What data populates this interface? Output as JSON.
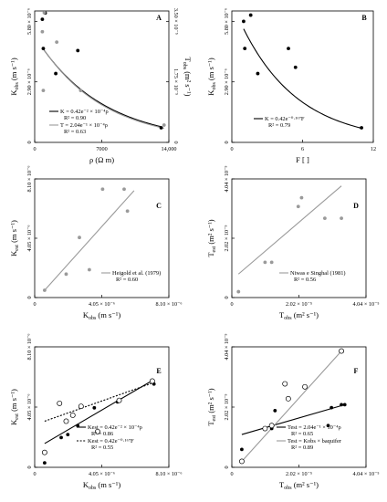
{
  "chart_data": [
    {
      "id": "A",
      "type": "scatter",
      "letter": "A",
      "xlabel": "ρ (Ω m)",
      "ylabel": "K_obs (m s⁻¹)",
      "y2label": "T_obs (m² s⁻¹)",
      "xlim": [
        0,
        14000
      ],
      "ylim": [
        0,
        6.3e-06
      ],
      "y2lim": [
        0,
        3.8e-05
      ],
      "xticks": [
        {
          "v": 0,
          "label": "0"
        },
        {
          "v": 7000,
          "label": "7000"
        },
        {
          "v": 14000,
          "label": "14,000"
        }
      ],
      "yticks": [
        {
          "v": 0,
          "label": "0"
        },
        {
          "v": 2.9e-06,
          "label": "2.90 × 10⁻⁶"
        },
        {
          "v": 5.8e-06,
          "label": "5.80 × 10⁻⁶"
        }
      ],
      "y2ticks": [
        {
          "v": 0,
          "label": "0"
        },
        {
          "v": 1.75e-05,
          "label": "1.75 × 10⁻⁵"
        },
        {
          "v": 3.5e-05,
          "label": "3.50 × 10⁻⁵"
        }
      ],
      "series": [
        {
          "name": "K",
          "color": "#000000",
          "axis": "y",
          "points": [
            [
              800,
              5.9e-06
            ],
            [
              1100,
              6.2e-06
            ],
            [
              900,
              4.5e-06
            ],
            [
              2200,
              3.3e-06
            ],
            [
              4500,
              4.4e-06
            ],
            [
              13200,
              7e-07
            ]
          ]
        },
        {
          "name": "T",
          "color": "#9a9a9a",
          "axis": "y2",
          "points": [
            [
              1000,
              3.75e-05
            ],
            [
              800,
              3.2e-05
            ],
            [
              2300,
              2.9e-05
            ],
            [
              900,
              1.5e-05
            ],
            [
              4800,
              1.5e-05
            ],
            [
              13500,
              5e-06
            ]
          ]
        }
      ],
      "fits": [
        {
          "series": "K",
          "a": 5.1e-06,
          "b": -0.000145,
          "equation": "K = 0.42e⁻² × 10⁻⁴ρ",
          "r2": "R² = 0.90",
          "color": "#000000"
        },
        {
          "series": "T",
          "a": 3.1e-05,
          "b": -0.00015,
          "equation": "T = 2.04e⁻¹ × 10⁻⁴ρ",
          "r2": "R² = 0.63",
          "color": "#9a9a9a"
        }
      ]
    },
    {
      "id": "B",
      "type": "scatter",
      "letter": "B",
      "xlabel": "F [ ]",
      "ylabel": "K_obs (m s⁻¹)",
      "xlim": [
        0,
        12
      ],
      "ylim": [
        0,
        6.3e-06
      ],
      "xticks": [
        {
          "v": 0,
          "label": "0"
        },
        {
          "v": 6,
          "label": "6"
        },
        {
          "v": 12,
          "label": "12"
        }
      ],
      "yticks": [
        {
          "v": 0,
          "label": "0"
        },
        {
          "v": 2.9e-06,
          "label": "2.90 × 10⁻⁶"
        },
        {
          "v": 5.8e-06,
          "label": "5.80 × 10⁻⁶"
        }
      ],
      "series": [
        {
          "name": "K",
          "color": "#000000",
          "points": [
            [
              1.0,
              5.8e-06
            ],
            [
              1.6,
              6.1e-06
            ],
            [
              1.1,
              4.5e-06
            ],
            [
              2.2,
              3.3e-06
            ],
            [
              4.8,
              4.5e-06
            ],
            [
              5.4,
              3.6e-06
            ],
            [
              11.0,
              7e-07
            ]
          ]
        }
      ],
      "fits": [
        {
          "series": "K",
          "a": 6.7e-06,
          "b": -0.208,
          "equation": "K = 0.42e⁻⁰·¹⁶⁷F",
          "r2": "R² = 0.79",
          "color": "#000000"
        }
      ]
    },
    {
      "id": "C",
      "type": "scatter",
      "letter": "C",
      "xlabel": "K_obs (m s⁻¹)",
      "ylabel": "K_est (m s⁻¹)",
      "xlim": [
        0,
        8.1e-06
      ],
      "ylim": [
        0,
        8.1e-06
      ],
      "xticks": [
        {
          "v": 0,
          "label": "0"
        },
        {
          "v": 4.05e-06,
          "label": "4.05 × 10⁻⁶"
        },
        {
          "v": 8.1e-06,
          "label": "8.10 × 10⁻⁶"
        }
      ],
      "yticks": [
        {
          "v": 0,
          "label": "0"
        },
        {
          "v": 4.05e-06,
          "label": "4.05 × 10⁻⁶"
        },
        {
          "v": 8.1e-06,
          "label": "8.10 × 10⁻⁶"
        }
      ],
      "series": [
        {
          "name": "Heigold et al. (1979)",
          "color": "#9a9a9a",
          "points": [
            [
              6e-07,
              5e-07
            ],
            [
              1.9e-06,
              1.6e-06
            ],
            [
              2.7e-06,
              4.1e-06
            ],
            [
              3.3e-06,
              1.9e-06
            ],
            [
              4.1e-06,
              7.4e-06
            ],
            [
              5.4e-06,
              7.4e-06
            ],
            [
              5.6e-06,
              5.9e-06
            ]
          ]
        }
      ],
      "fits": [
        {
          "series": "Heigold et al. (1979)",
          "kind": "line",
          "x0": 6e-07,
          "y0": 5e-07,
          "x1": 6e-06,
          "y1": 7.3e-06,
          "equation": "Heigold et al. (1979)",
          "r2": "R² = 0.60",
          "color": "#9a9a9a"
        }
      ]
    },
    {
      "id": "D",
      "type": "scatter",
      "letter": "D",
      "xlabel": "T_obs (m² s⁻¹)",
      "ylabel": "T_est (m² s⁻¹)",
      "xlim": [
        0,
        4.04e-05
      ],
      "ylim": [
        0,
        4.04e-05
      ],
      "xticks": [
        {
          "v": 0,
          "label": "0"
        },
        {
          "v": 2.02e-05,
          "label": "2.02 × 10⁻⁵"
        },
        {
          "v": 4.04e-05,
          "label": "4.04 × 10⁻⁵"
        }
      ],
      "yticks": [
        {
          "v": 0,
          "label": "0"
        },
        {
          "v": 2.02e-05,
          "label": "2.02 × 10⁻⁵"
        },
        {
          "v": 4.04e-05,
          "label": "4.04 × 10⁻⁵"
        }
      ],
      "series": [
        {
          "name": "Niwas e Singhal (1981)",
          "color": "#9a9a9a",
          "points": [
            [
              2e-06,
              2e-06
            ],
            [
              1e-05,
              1.2e-05
            ],
            [
              1.2e-05,
              1.2e-05
            ],
            [
              2e-05,
              3.1e-05
            ],
            [
              2.1e-05,
              3.4e-05
            ],
            [
              2.8e-05,
              2.7e-05
            ],
            [
              3.3e-05,
              2.7e-05
            ]
          ]
        }
      ],
      "fits": [
        {
          "series": "Niwas e Singhal (1981)",
          "kind": "line",
          "x0": 2e-06,
          "y0": 8e-06,
          "x1": 3.3e-05,
          "y1": 3.8e-05,
          "equation": "Niwas e Singhal (1981)",
          "r2": "R² = 0.56",
          "color": "#9a9a9a"
        }
      ]
    },
    {
      "id": "E",
      "type": "scatter",
      "letter": "E",
      "xlabel": "K_obs (m s⁻¹)",
      "ylabel": "K_est (m s⁻¹)",
      "xlim": [
        0,
        8.1e-06
      ],
      "ylim": [
        0,
        8.1e-06
      ],
      "xticks": [
        {
          "v": 0,
          "label": "0"
        },
        {
          "v": 4.05e-06,
          "label": "4.05 × 10⁻⁶"
        },
        {
          "v": 8.1e-06,
          "label": "8.10 × 10⁻⁶"
        }
      ],
      "yticks": [
        {
          "v": 0,
          "label": "0"
        },
        {
          "v": 4.05e-06,
          "label": "4.05 × 10⁻⁶"
        },
        {
          "v": 8.1e-06,
          "label": "8.10 × 10⁻⁶"
        }
      ],
      "series": [
        {
          "name": "Kest (ρ)",
          "marker": "filled",
          "color": "#000000",
          "points": [
            [
              6e-07,
              3e-07
            ],
            [
              1.6e-06,
              2e-06
            ],
            [
              2e-06,
              2.2e-06
            ],
            [
              2.6e-06,
              2.8e-06
            ],
            [
              3.6e-06,
              4e-06
            ],
            [
              5e-06,
              4.4e-06
            ],
            [
              7.2e-06,
              5.6e-06
            ]
          ]
        },
        {
          "name": "Kest (F)",
          "marker": "open",
          "color": "#000000",
          "points": [
            [
              6e-07,
              1e-06
            ],
            [
              1.5e-06,
              4.3e-06
            ],
            [
              1.9e-06,
              3.1e-06
            ],
            [
              2.3e-06,
              3.5e-06
            ],
            [
              2.8e-06,
              4.1e-06
            ],
            [
              3.8e-06,
              2.4e-06
            ],
            [
              5.1e-06,
              4.5e-06
            ],
            [
              7.1e-06,
              5.8e-06
            ]
          ]
        }
      ],
      "fits": [
        {
          "series": "Kest (ρ)",
          "kind": "line",
          "style": "solid",
          "x0": 6e-07,
          "y0": 1.6e-06,
          "x1": 7.2e-06,
          "y1": 5.9e-06,
          "equation": "Kest = 0.42e⁻² × 10⁻⁴ρ",
          "r2": "R² = 0.86",
          "color": "#000000"
        },
        {
          "series": "Kest (F)",
          "kind": "line",
          "style": "dotted",
          "x0": 6e-07,
          "y0": 3.1e-06,
          "x1": 7.2e-06,
          "y1": 5.7e-06,
          "equation": "Kest = 0.42e⁻⁰·¹⁶⁷F",
          "r2": "R² = 0.55",
          "color": "#000000"
        }
      ]
    },
    {
      "id": "F",
      "type": "scatter",
      "letter": "F",
      "xlabel": "T_obs (m² s⁻¹)",
      "ylabel": "T_est (m² s⁻¹)",
      "xlim": [
        0,
        4.04e-05
      ],
      "ylim": [
        0,
        4.04e-05
      ],
      "xticks": [
        {
          "v": 0,
          "label": "0"
        },
        {
          "v": 2.02e-05,
          "label": "2.02 × 10⁻⁵"
        },
        {
          "v": 4.04e-05,
          "label": "4.04 × 10⁻⁵"
        }
      ],
      "yticks": [
        {
          "v": 0,
          "label": "0"
        },
        {
          "v": 2.02e-05,
          "label": "2.02 × 10⁻⁵"
        },
        {
          "v": 4.04e-05,
          "label": "4.04 × 10⁻⁵"
        }
      ],
      "series": [
        {
          "name": "Test (ρ)",
          "marker": "filled",
          "color": "#000000",
          "points": [
            [
              3e-06,
              6e-06
            ],
            [
              1.2e-05,
              1.3e-05
            ],
            [
              1.3e-05,
              1.9e-05
            ],
            [
              2.9e-05,
              1.4e-05
            ],
            [
              3e-05,
              2e-05
            ],
            [
              3.3e-05,
              2.1e-05
            ],
            [
              3.4e-05,
              2.1e-05
            ]
          ]
        },
        {
          "name": "Test (Kobs × baquifer)",
          "marker": "open",
          "color": "#000000",
          "points": [
            [
              3e-06,
              2e-06
            ],
            [
              1e-05,
              1.3e-05
            ],
            [
              1.2e-05,
              1.4e-05
            ],
            [
              1.6e-05,
              2.8e-05
            ],
            [
              1.7e-05,
              2.3e-05
            ],
            [
              2.2e-05,
              2.7e-05
            ],
            [
              3.3e-05,
              3.9e-05
            ]
          ]
        }
      ],
      "fits": [
        {
          "series": "Test (ρ)",
          "kind": "line",
          "style": "solid",
          "x0": 3e-06,
          "y0": 1.1e-05,
          "x1": 3.4e-05,
          "y1": 2.1e-05,
          "equation": "Test = 2.04e⁻¹ × 10⁻⁴ρ",
          "r2": "R² = 0.65",
          "color": "#000000"
        },
        {
          "series": "Test (Kobs × baquifer)",
          "kind": "line",
          "style": "solid",
          "x0": 3e-06,
          "y0": 2e-06,
          "x1": 3.3e-05,
          "y1": 3.9e-05,
          "equation": "Test = Kobs × baquifer",
          "r2": "R² = 0.89",
          "color": "#9a9a9a"
        }
      ]
    }
  ]
}
